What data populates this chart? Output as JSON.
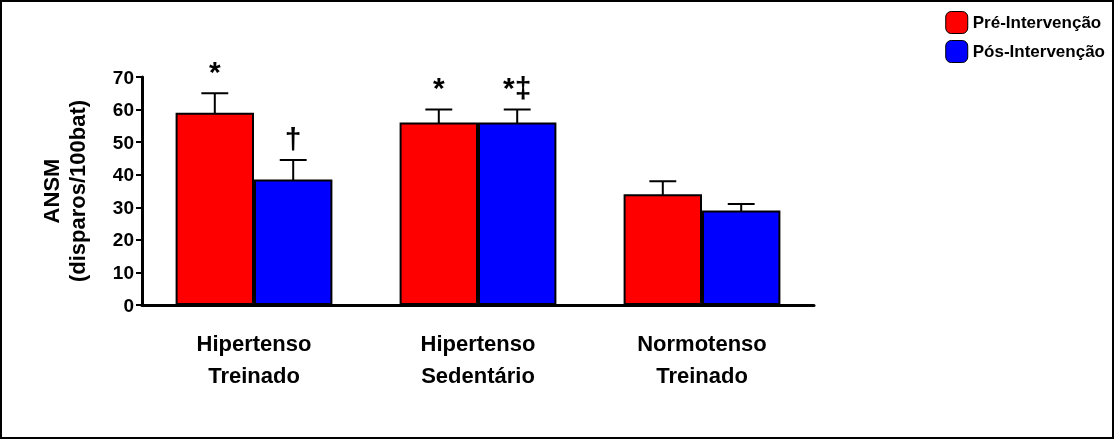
{
  "chart_data": {
    "type": "bar",
    "ylabel": "ANSM\n(disparos/100bat)",
    "categories": [
      "Hipertenso\nTreinado",
      "Hipertenso\nSedentário",
      "Normotenso\nTreinado"
    ],
    "series": [
      {
        "name": "Pré-Intervenção",
        "color": "#ff0000",
        "values": [
          59,
          56,
          34
        ],
        "errors": [
          6,
          4,
          4
        ]
      },
      {
        "name": "Pós-Intervenção",
        "color": "#0000ff",
        "values": [
          38.5,
          56,
          29
        ],
        "errors": [
          6,
          4,
          2
        ]
      }
    ],
    "ylim": [
      0,
      70
    ],
    "yticks": [
      0,
      10,
      20,
      30,
      40,
      50,
      60,
      70
    ],
    "grid": false,
    "legend": "top right",
    "annotations": [
      {
        "text": "*",
        "x": "Hipertenso\nTreinado",
        "y": 59
      },
      {
        "text": "†",
        "x": "Hipertenso\nTreinado",
        "y": 38.5
      },
      {
        "text": "*",
        "x": "Hipertenso\nSedentário",
        "y": 56
      },
      {
        "text": "*‡",
        "x": "Hipertenso\nSedentário",
        "y": 56
      }
    ]
  }
}
